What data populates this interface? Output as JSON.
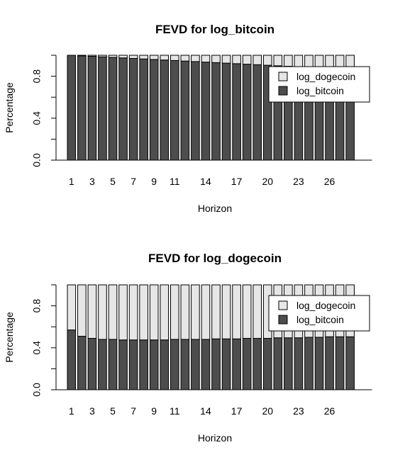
{
  "colors": {
    "log_dogecoin": "#e6e6e6",
    "log_bitcoin": "#4d4d4d",
    "bar_border": "#000000"
  },
  "chart_data": [
    {
      "type": "bar",
      "stacked": true,
      "title": "FEVD for log_bitcoin",
      "xlabel": "Horizon",
      "ylabel": "Percentage",
      "ylim": [
        0,
        1
      ],
      "yticks": [
        "0.0",
        "0.4",
        "0.8"
      ],
      "xtick_labels": [
        "1",
        "3",
        "5",
        "7",
        "9",
        "11",
        "14",
        "17",
        "20",
        "23",
        "26"
      ],
      "legend": {
        "position": "top-right",
        "entries": [
          "log_dogecoin",
          "log_bitcoin"
        ]
      },
      "categories": [
        1,
        2,
        3,
        4,
        5,
        6,
        7,
        8,
        9,
        10,
        11,
        12,
        13,
        14,
        15,
        16,
        17,
        18,
        19,
        20,
        21,
        22,
        23,
        24,
        25,
        26,
        27,
        28
      ],
      "series": [
        {
          "name": "log_bitcoin",
          "values": [
            1.0,
            0.995,
            0.99,
            0.985,
            0.98,
            0.975,
            0.97,
            0.965,
            0.96,
            0.955,
            0.95,
            0.945,
            0.94,
            0.935,
            0.93,
            0.925,
            0.92,
            0.915,
            0.91,
            0.905,
            0.9,
            0.895,
            0.89,
            0.885,
            0.88,
            0.875,
            0.87,
            0.865
          ]
        },
        {
          "name": "log_dogecoin",
          "values": [
            0.0,
            0.005,
            0.01,
            0.015,
            0.02,
            0.025,
            0.03,
            0.035,
            0.04,
            0.045,
            0.05,
            0.055,
            0.06,
            0.065,
            0.07,
            0.075,
            0.08,
            0.085,
            0.09,
            0.095,
            0.1,
            0.105,
            0.11,
            0.115,
            0.12,
            0.125,
            0.13,
            0.135
          ]
        }
      ]
    },
    {
      "type": "bar",
      "stacked": true,
      "title": "FEVD for log_dogecoin",
      "xlabel": "Horizon",
      "ylabel": "Percentage",
      "ylim": [
        0,
        1
      ],
      "yticks": [
        "0.0",
        "0.4",
        "0.8"
      ],
      "xtick_labels": [
        "1",
        "3",
        "5",
        "7",
        "9",
        "11",
        "14",
        "17",
        "20",
        "23",
        "26"
      ],
      "legend": {
        "position": "top-right",
        "entries": [
          "log_dogecoin",
          "log_bitcoin"
        ]
      },
      "categories": [
        1,
        2,
        3,
        4,
        5,
        6,
        7,
        8,
        9,
        10,
        11,
        12,
        13,
        14,
        15,
        16,
        17,
        18,
        19,
        20,
        21,
        22,
        23,
        24,
        25,
        26,
        27,
        28
      ],
      "series": [
        {
          "name": "log_bitcoin",
          "values": [
            0.57,
            0.51,
            0.49,
            0.48,
            0.48,
            0.475,
            0.475,
            0.475,
            0.475,
            0.475,
            0.48,
            0.48,
            0.48,
            0.48,
            0.485,
            0.485,
            0.485,
            0.49,
            0.49,
            0.49,
            0.495,
            0.495,
            0.495,
            0.5,
            0.5,
            0.505,
            0.505,
            0.505
          ]
        },
        {
          "name": "log_dogecoin",
          "values": [
            0.43,
            0.49,
            0.51,
            0.52,
            0.52,
            0.525,
            0.525,
            0.525,
            0.525,
            0.525,
            0.52,
            0.52,
            0.52,
            0.52,
            0.515,
            0.515,
            0.515,
            0.51,
            0.51,
            0.51,
            0.505,
            0.505,
            0.505,
            0.5,
            0.5,
            0.495,
            0.495,
            0.495
          ]
        }
      ]
    }
  ]
}
